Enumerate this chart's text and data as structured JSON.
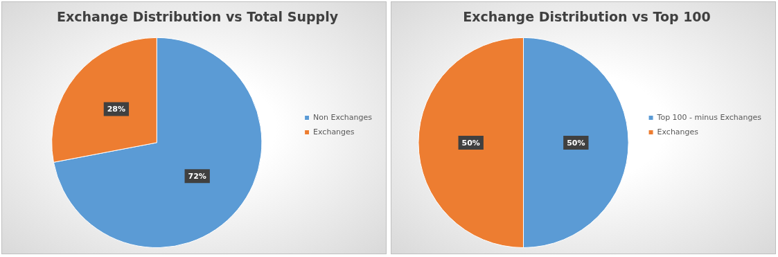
{
  "chart_data": [
    {
      "type": "pie",
      "title": "Exchange Distribution vs Total Supply",
      "categories": [
        "Non Exchanges",
        "Exchanges"
      ],
      "values": [
        72,
        28
      ],
      "colors": [
        "#5b9bd5",
        "#ed7d31"
      ],
      "value_labels": [
        "72%",
        "28%"
      ],
      "legend": "right"
    },
    {
      "type": "pie",
      "title": "Exchange Distribution vs Top 100",
      "categories": [
        "Top 100 - minus Exchanges",
        "Exchanges"
      ],
      "values": [
        50,
        50
      ],
      "colors": [
        "#5b9bd5",
        "#ed7d31"
      ],
      "value_labels": [
        "50%",
        "50%"
      ],
      "legend": "right"
    }
  ]
}
